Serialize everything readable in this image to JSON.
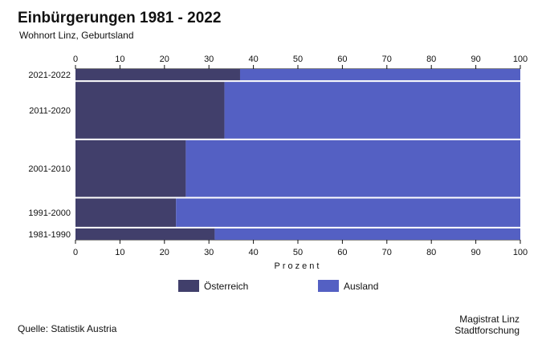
{
  "chart_data": {
    "type": "bar",
    "orientation": "horizontal",
    "stacked": true,
    "title": "Einbürgerungen 1981 - 2022",
    "subtitle": "Wohnort Linz, Geburtsland",
    "xlabel": "Prozent",
    "xlim": [
      0,
      100
    ],
    "xticks": [
      0,
      10,
      20,
      30,
      40,
      50,
      60,
      70,
      80,
      90,
      100
    ],
    "categories": [
      "2021-2022",
      "2011-2020",
      "2001-2010",
      "1991-2000",
      "1981-1990"
    ],
    "category_weights": [
      2,
      10,
      10,
      5,
      2
    ],
    "series": [
      {
        "name": "Österreich",
        "color": "#413f6b",
        "values": [
          37,
          33.5,
          24.8,
          22.6,
          31.3
        ]
      },
      {
        "name": "Ausland",
        "color": "#5460c3",
        "values": [
          63,
          66.5,
          75.2,
          77.4,
          68.7
        ]
      }
    ],
    "legend_position": "bottom"
  },
  "footer": {
    "source": "Quelle: Statistik Austria",
    "credit_line1": "Magistrat Linz",
    "credit_line2": "Stadtforschung"
  }
}
